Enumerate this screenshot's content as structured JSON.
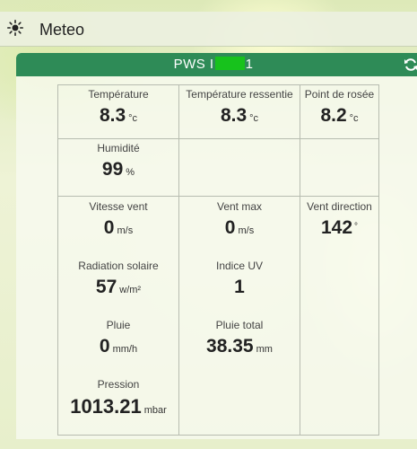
{
  "app": {
    "title": "Meteo",
    "icon": "sun-icon"
  },
  "widget": {
    "title_prefix": "PWS I",
    "title_suffix": "1",
    "refresh_icon": "refresh-icon",
    "redact_color": "#17c21c",
    "accent_color": "#2e8b57"
  },
  "cells": {
    "temperature": {
      "label": "Température",
      "value": "8.3",
      "unit": "°c"
    },
    "feels_like": {
      "label": "Température ressentie",
      "value": "8.3",
      "unit": "°c"
    },
    "dew_point": {
      "label": "Point de rosée",
      "value": "8.2",
      "unit": "°c"
    },
    "humidity": {
      "label": "Humidité",
      "value": "99",
      "unit": "%"
    },
    "wind_speed": {
      "label": "Vitesse vent",
      "value": "0",
      "unit": "m/s"
    },
    "wind_max": {
      "label": "Vent max",
      "value": "0",
      "unit": "m/s"
    },
    "wind_direction": {
      "label": "Vent direction",
      "value": "142",
      "unit": "°"
    },
    "solar_radiation": {
      "label": "Radiation solaire",
      "value": "57",
      "unit": "w/m²"
    },
    "uv_index": {
      "label": "Indice UV",
      "value": "1",
      "unit": ""
    },
    "rain": {
      "label": "Pluie",
      "value": "0",
      "unit": "mm/h"
    },
    "rain_total": {
      "label": "Pluie total",
      "value": "38.35",
      "unit": "mm"
    },
    "pressure": {
      "label": "Pression",
      "value": "1013.21",
      "unit": "mbar"
    }
  }
}
